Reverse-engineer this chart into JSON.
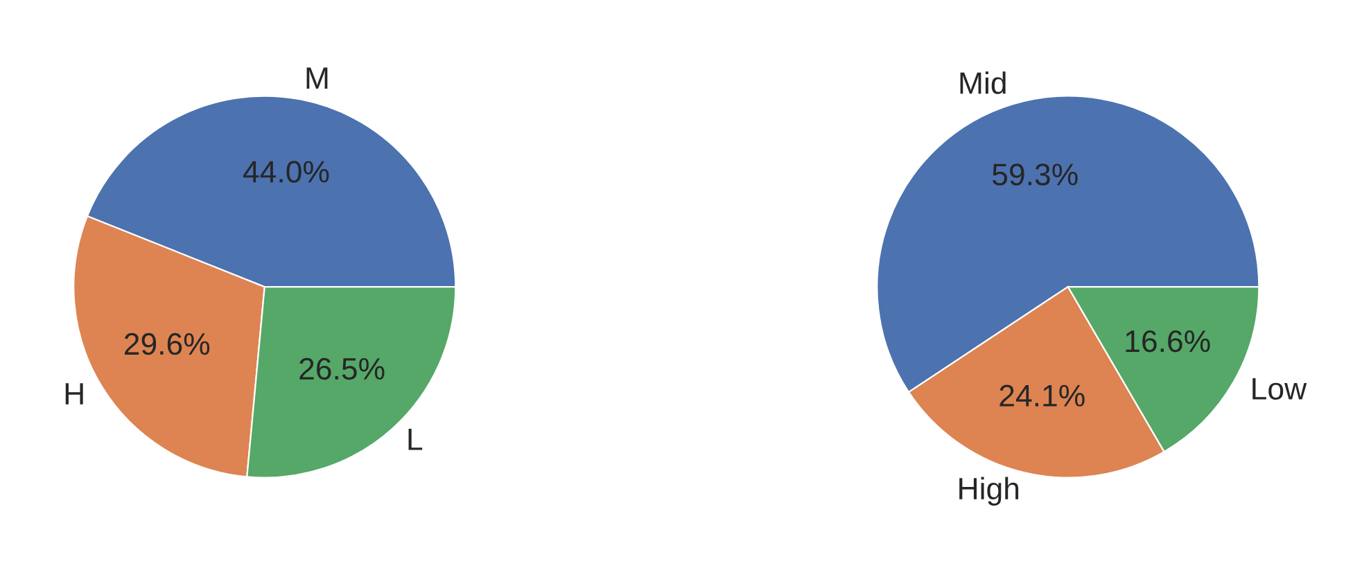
{
  "chart_data": [
    {
      "type": "pie",
      "categories": [
        "M",
        "H",
        "L"
      ],
      "values": [
        44.0,
        29.6,
        26.5
      ],
      "colors": [
        "#4c72b0",
        "#dd8452",
        "#55a868"
      ],
      "value_labels": [
        "44.0%",
        "29.6%",
        "26.5%"
      ]
    },
    {
      "type": "pie",
      "categories": [
        "Mid",
        "High",
        "Low"
      ],
      "values": [
        59.3,
        24.1,
        16.6
      ],
      "colors": [
        "#4c72b0",
        "#dd8452",
        "#55a868"
      ],
      "value_labels": [
        "59.3%",
        "24.1%",
        "16.6%"
      ]
    }
  ]
}
